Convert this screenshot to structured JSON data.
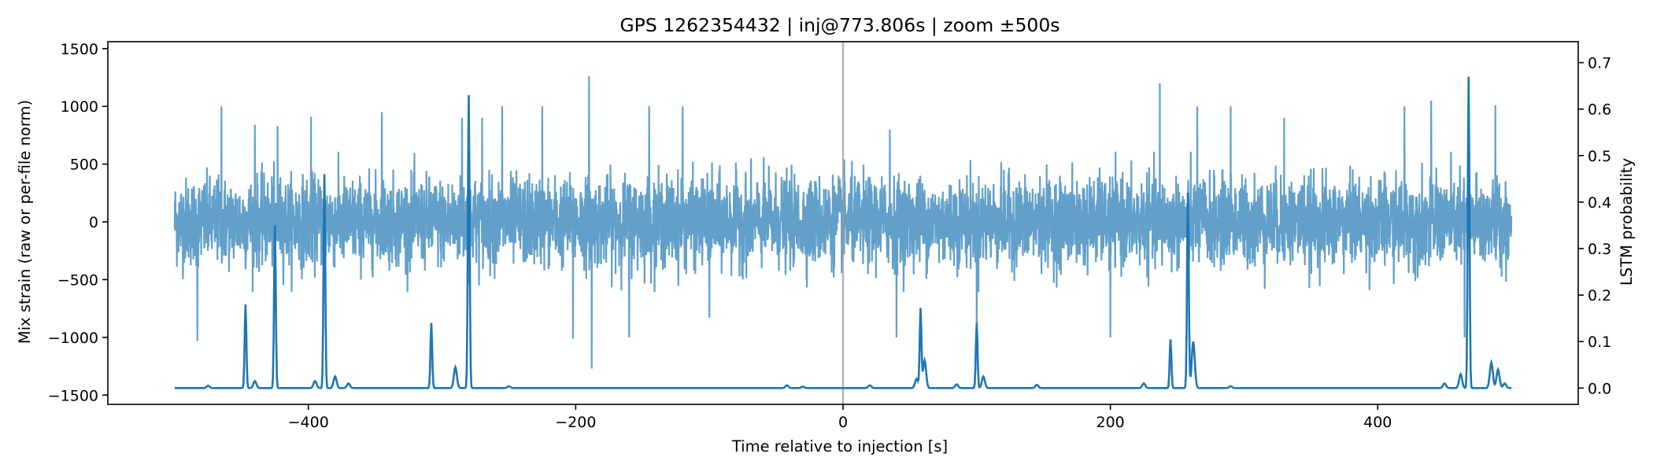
{
  "chart_data": {
    "type": "line",
    "title": "GPS 1262354432 | inj@773.806s | zoom ±500s",
    "xlabel": "Time relative to injection [s]",
    "ylabel_left": "Mix strain (raw or per-file norm)",
    "ylabel_right": "LSTM probability",
    "xlim": [
      -550,
      550
    ],
    "ylim_left": [
      -1580,
      1560
    ],
    "ylim_right": [
      -0.035,
      0.745
    ],
    "x_ticks": [
      -400,
      -200,
      0,
      200,
      400
    ],
    "x_tick_labels": [
      "−400",
      "−200",
      "0",
      "200",
      "400"
    ],
    "y_left_ticks": [
      -1500,
      -1000,
      -500,
      0,
      500,
      1000,
      1500
    ],
    "y_left_tick_labels": [
      "−1500",
      "−1000",
      "−500",
      "0",
      "500",
      "1000",
      "1500"
    ],
    "y_right_ticks": [
      0.0,
      0.1,
      0.2,
      0.3,
      0.4,
      0.5,
      0.6,
      0.7
    ],
    "y_right_tick_labels": [
      "0.0",
      "0.1",
      "0.2",
      "0.3",
      "0.4",
      "0.5",
      "0.6",
      "0.7"
    ],
    "injection_marker_x": 0,
    "grid": false,
    "colors": {
      "strain": "#1f77b4",
      "probability": "#1f77b4",
      "injection_line": "#999999"
    },
    "series": [
      {
        "axis": "left",
        "x_range": [
          -500,
          500
        ],
        "typical_band": [
          -450,
          450
        ],
        "spikes": [
          {
            "x": -483,
            "y": 1050
          },
          {
            "x": -483,
            "y": -1030
          },
          {
            "x": -465,
            "y": 1000
          },
          {
            "x": -440,
            "y": 840
          },
          {
            "x": -423,
            "y": 830
          },
          {
            "x": -398,
            "y": 910
          },
          {
            "x": -345,
            "y": 950
          },
          {
            "x": -285,
            "y": 900
          },
          {
            "x": -270,
            "y": 900
          },
          {
            "x": -255,
            "y": 1000
          },
          {
            "x": -225,
            "y": 1000
          },
          {
            "x": -202,
            "y": -1010
          },
          {
            "x": -190,
            "y": 1260
          },
          {
            "x": -188,
            "y": -1270
          },
          {
            "x": -160,
            "y": -1000
          },
          {
            "x": -145,
            "y": 1000
          },
          {
            "x": -120,
            "y": 1000
          },
          {
            "x": -100,
            "y": -830
          },
          {
            "x": 35,
            "y": 800
          },
          {
            "x": 40,
            "y": -1000
          },
          {
            "x": 100,
            "y": -1000
          },
          {
            "x": 200,
            "y": -1000
          },
          {
            "x": 237,
            "y": 1200
          },
          {
            "x": 265,
            "y": 1000
          },
          {
            "x": 290,
            "y": 1000
          },
          {
            "x": 330,
            "y": 900
          },
          {
            "x": 420,
            "y": 1000
          },
          {
            "x": 440,
            "y": 1050
          },
          {
            "x": 465,
            "y": -1000
          },
          {
            "x": 488,
            "y": 1010
          }
        ]
      },
      {
        "axis": "right",
        "baseline": 0.0,
        "peaks": [
          {
            "x": -475,
            "y": 0.005
          },
          {
            "x": -447,
            "y": 0.18
          },
          {
            "x": -440,
            "y": 0.015
          },
          {
            "x": -425,
            "y": 0.35
          },
          {
            "x": -395,
            "y": 0.015
          },
          {
            "x": -388,
            "y": 0.46
          },
          {
            "x": -380,
            "y": 0.025
          },
          {
            "x": -370,
            "y": 0.01
          },
          {
            "x": -308,
            "y": 0.14
          },
          {
            "x": -290,
            "y": 0.045
          },
          {
            "x": -280,
            "y": 0.63
          },
          {
            "x": -250,
            "y": 0.004
          },
          {
            "x": -42,
            "y": 0.006
          },
          {
            "x": -30,
            "y": 0.003
          },
          {
            "x": 20,
            "y": 0.006
          },
          {
            "x": 55,
            "y": 0.02
          },
          {
            "x": 58,
            "y": 0.17
          },
          {
            "x": 61,
            "y": 0.06
          },
          {
            "x": 85,
            "y": 0.008
          },
          {
            "x": 100,
            "y": 0.14
          },
          {
            "x": 105,
            "y": 0.025
          },
          {
            "x": 145,
            "y": 0.007
          },
          {
            "x": 225,
            "y": 0.01
          },
          {
            "x": 245,
            "y": 0.105
          },
          {
            "x": 258,
            "y": 0.42
          },
          {
            "x": 262,
            "y": 0.1
          },
          {
            "x": 290,
            "y": 0.004
          },
          {
            "x": 450,
            "y": 0.01
          },
          {
            "x": 462,
            "y": 0.03
          },
          {
            "x": 468,
            "y": 0.67
          },
          {
            "x": 485,
            "y": 0.055
          },
          {
            "x": 490,
            "y": 0.04
          },
          {
            "x": 495,
            "y": 0.01
          }
        ]
      }
    ]
  }
}
